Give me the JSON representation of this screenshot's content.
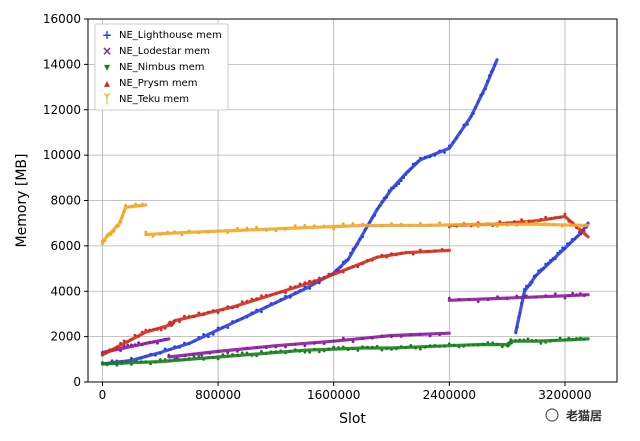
{
  "chart_data": {
    "type": "scatter",
    "title": "",
    "xlabel": "Slot",
    "ylabel": "Memory [MB]",
    "xlim": [
      -100000,
      3560000
    ],
    "ylim": [
      0,
      16000
    ],
    "xticks": [
      0,
      800000,
      1600000,
      2400000,
      3200000
    ],
    "yticks": [
      0,
      2000,
      4000,
      6000,
      8000,
      10000,
      12000,
      14000,
      16000
    ],
    "grid": true,
    "legend_position": "top-left",
    "series": [
      {
        "name": "NE_Lighthouse mem",
        "color": "#2b3fe0",
        "marker": "+",
        "segments": [
          [
            [
              0,
              800
            ],
            [
              200000,
              950
            ],
            [
              400000,
              1300
            ],
            [
              600000,
              1700
            ],
            [
              800000,
              2300
            ],
            [
              1000000,
              2900
            ],
            [
              1200000,
              3500
            ],
            [
              1400000,
              4100
            ],
            [
              1600000,
              4800
            ],
            [
              1700000,
              5400
            ],
            [
              1800000,
              6500
            ],
            [
              1900000,
              7600
            ],
            [
              2000000,
              8500
            ],
            [
              2100000,
              9200
            ],
            [
              2200000,
              9800
            ],
            [
              2400000,
              10300
            ],
            [
              2550000,
              11700
            ],
            [
              2650000,
              13000
            ],
            [
              2730000,
              14200
            ]
          ],
          [
            [
              2860000,
              2200
            ],
            [
              2920000,
              4000
            ],
            [
              3000000,
              4700
            ],
            [
              3100000,
              5300
            ],
            [
              3200000,
              5900
            ],
            [
              3300000,
              6500
            ],
            [
              3360000,
              7000
            ]
          ]
        ]
      },
      {
        "name": "NE_Lodestar mem",
        "color": "#8a1aa0",
        "marker": "x",
        "segments": [
          [
            [
              0,
              1300
            ],
            [
              150000,
              1500
            ],
            [
              300000,
              1700
            ],
            [
              460000,
              1900
            ]
          ],
          [
            [
              460000,
              1100
            ],
            [
              800000,
              1350
            ],
            [
              1200000,
              1600
            ],
            [
              1600000,
              1800
            ],
            [
              2000000,
              2050
            ],
            [
              2400000,
              2150
            ]
          ],
          [
            [
              2400000,
              3600
            ],
            [
              2800000,
              3700
            ],
            [
              3200000,
              3800
            ],
            [
              3360000,
              3850
            ]
          ]
        ]
      },
      {
        "name": "NE_Nimbus mem",
        "color": "#17801a",
        "marker": "v",
        "segments": [
          [
            [
              0,
              800
            ],
            [
              200000,
              850
            ],
            [
              400000,
              900
            ],
            [
              600000,
              1000
            ],
            [
              800000,
              1100
            ],
            [
              1000000,
              1200
            ],
            [
              1200000,
              1300
            ],
            [
              1400000,
              1400
            ],
            [
              1600000,
              1450
            ],
            [
              1800000,
              1500
            ],
            [
              2000000,
              1500
            ],
            [
              2200000,
              1550
            ],
            [
              2400000,
              1600
            ],
            [
              2600000,
              1650
            ],
            [
              2800000,
              1650
            ],
            [
              2830000,
              1800
            ],
            [
              3000000,
              1800
            ],
            [
              3200000,
              1850
            ],
            [
              3360000,
              1900
            ]
          ]
        ]
      },
      {
        "name": "NE_Prysm mem",
        "color": "#d42a1e",
        "marker": "^",
        "segments": [
          [
            [
              0,
              1200
            ],
            [
              150000,
              1700
            ],
            [
              300000,
              2200
            ],
            [
              460000,
              2500
            ],
            [
              500000,
              2700
            ],
            [
              700000,
              3000
            ],
            [
              900000,
              3300
            ],
            [
              1100000,
              3700
            ],
            [
              1300000,
              4100
            ],
            [
              1500000,
              4500
            ],
            [
              1700000,
              5000
            ],
            [
              1900000,
              5500
            ],
            [
              2100000,
              5700
            ],
            [
              2400000,
              5800
            ]
          ],
          [
            [
              2400000,
              6900
            ],
            [
              2700000,
              6950
            ],
            [
              3000000,
              7100
            ],
            [
              3200000,
              7300
            ],
            [
              3360000,
              6400
            ]
          ]
        ]
      },
      {
        "name": "NE_Teku mem",
        "color": "#f5a623",
        "marker": "1",
        "segments": [
          [
            [
              0,
              6200
            ],
            [
              60000,
              6600
            ],
            [
              120000,
              7000
            ],
            [
              160000,
              7700
            ],
            [
              300000,
              7800
            ]
          ],
          [
            [
              300000,
              6500
            ],
            [
              600000,
              6600
            ],
            [
              1000000,
              6700
            ],
            [
              1400000,
              6800
            ],
            [
              1800000,
              6900
            ],
            [
              2200000,
              6900
            ],
            [
              2600000,
              6950
            ],
            [
              3000000,
              6950
            ],
            [
              3360000,
              6900
            ]
          ]
        ]
      }
    ]
  },
  "watermark": {
    "text": "老猫居"
  }
}
